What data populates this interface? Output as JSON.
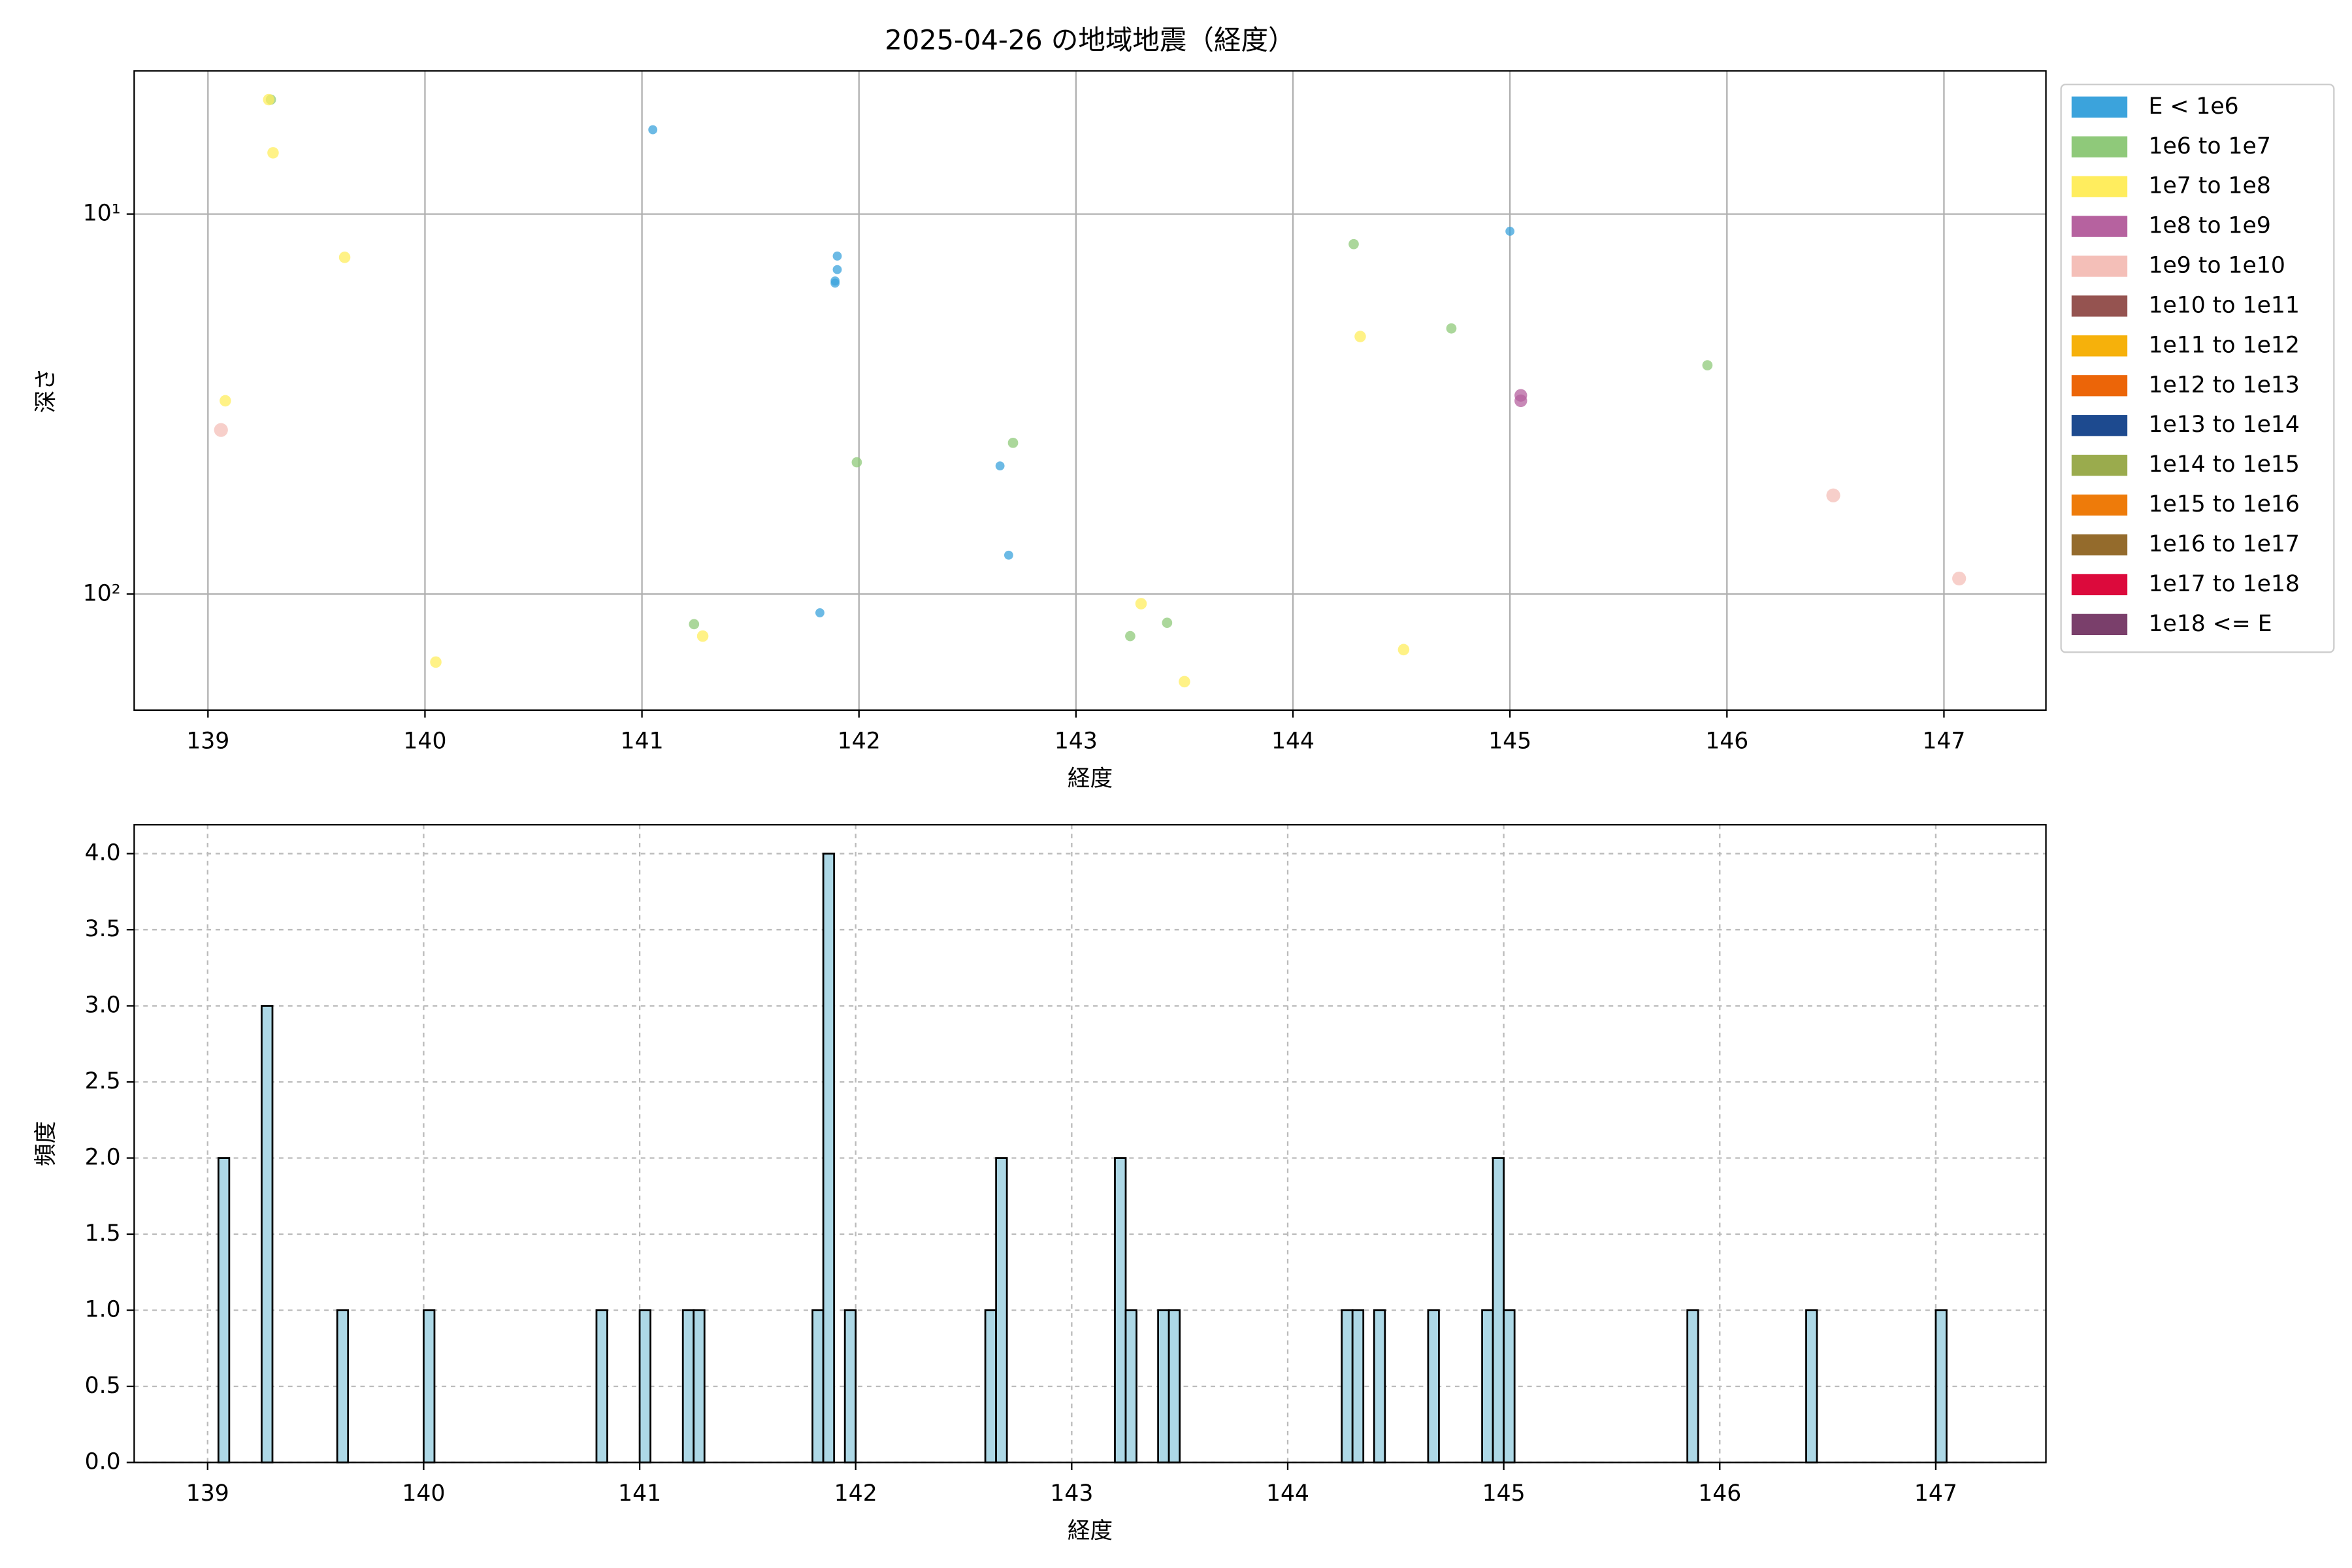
{
  "chart_data": [
    {
      "type": "scatter",
      "title": "2025-04-26 の地域地震（経度）",
      "xlabel": "経度",
      "ylabel": "深さ",
      "xlim": [
        138.66,
        147.47
      ],
      "xticks": [
        139,
        140,
        141,
        142,
        143,
        144,
        145,
        146,
        147
      ],
      "ylim": [
        202,
        4.2
      ],
      "log_y": true,
      "yticks": [
        {
          "value": 10,
          "label": "10¹"
        },
        {
          "value": 100,
          "label": "10²"
        }
      ],
      "grid": true,
      "legend": "outside right",
      "series": [
        {
          "name": "E < 1e6",
          "color": "#3ba3dc",
          "x": [
            141.05,
            141.9,
            141.9,
            141.89,
            141.89,
            142.65,
            142.69,
            141.82,
            145.0
          ],
          "values": [
            6.0,
            12.9,
            14.0,
            15.0,
            15.2,
            46,
            79,
            112,
            11.1
          ]
        },
        {
          "name": "1e6 to 1e7",
          "color": "#8fc97a",
          "x": [
            139.29,
            141.24,
            141.99,
            142.71,
            143.25,
            143.42,
            144.28,
            144.73,
            145.91
          ],
          "values": [
            5.0,
            120,
            45,
            40,
            129,
            119,
            12.0,
            20,
            25
          ]
        },
        {
          "name": "1e7 to 1e8",
          "color": "#ffed5e",
          "x": [
            139.28,
            139.08,
            139.3,
            139.63,
            140.05,
            141.28,
            143.3,
            143.5,
            144.31,
            144.51
          ],
          "values": [
            5.0,
            31,
            6.9,
            13,
            151,
            129,
            106,
            170,
            21,
            140
          ]
        },
        {
          "name": "1e8 to 1e9",
          "color": "#b6629f",
          "x": [
            145.05,
            145.05
          ],
          "values": [
            30,
            31
          ]
        },
        {
          "name": "1e9 to 1e10",
          "color": "#f4bfb8",
          "x": [
            139.06,
            146.49,
            147.07
          ],
          "values": [
            37,
            55,
            91
          ]
        },
        {
          "name": "1e10 to 1e11",
          "color": "#955350",
          "x": [],
          "values": []
        },
        {
          "name": "1e11 to 1e12",
          "color": "#f6b10b",
          "x": [],
          "values": []
        },
        {
          "name": "1e12 to 1e13",
          "color": "#ec6508",
          "x": [],
          "values": []
        },
        {
          "name": "1e13 to 1e14",
          "color": "#1d4a8f",
          "x": [],
          "values": []
        },
        {
          "name": "1e14 to 1e15",
          "color": "#9aab4d",
          "x": [],
          "values": []
        },
        {
          "name": "1e15 to 1e16",
          "color": "#ee7b0a",
          "x": [],
          "values": []
        },
        {
          "name": "1e16 to 1e17",
          "color": "#946b2c",
          "x": [],
          "values": []
        },
        {
          "name": "1e17 to 1e18",
          "color": "#dc0a3c",
          "x": [],
          "values": []
        },
        {
          "name": "1e18 <= E",
          "color": "#7a3f6b",
          "x": [],
          "values": []
        }
      ]
    },
    {
      "type": "histogram",
      "xlabel": "経度",
      "ylabel": "頻度",
      "color": "#add8e6",
      "edgecolor": "#000000",
      "xlim": [
        138.66,
        147.51
      ],
      "xticks": [
        139,
        140,
        141,
        142,
        143,
        144,
        145,
        146,
        147
      ],
      "ylim": [
        0,
        4.19
      ],
      "yticks": [
        {
          "value": 0,
          "label": "0.0"
        },
        {
          "value": 0.5,
          "label": "0.5"
        },
        {
          "value": 1,
          "label": "1.0"
        },
        {
          "value": 1.5,
          "label": "1.5"
        },
        {
          "value": 2,
          "label": "2.0"
        },
        {
          "value": 2.5,
          "label": "2.5"
        },
        {
          "value": 3,
          "label": "3.0"
        },
        {
          "value": 3.5,
          "label": "3.5"
        },
        {
          "value": 4,
          "label": "4.0"
        }
      ],
      "grid": true,
      "grid_style": "dashed",
      "bins": [
        139.05,
        139.1,
        139.15,
        139.2,
        139.25,
        139.3,
        139.35,
        139.4,
        139.45,
        139.5,
        139.55,
        139.6,
        139.65,
        139.7,
        139.75,
        139.8,
        139.85,
        139.9,
        139.95,
        140,
        140.05,
        140.1,
        140.15,
        140.2,
        140.25,
        140.3,
        140.35,
        140.4,
        140.45,
        140.5,
        140.55,
        140.6,
        140.65,
        140.7,
        140.75,
        140.8,
        140.85,
        140.9,
        140.95,
        141,
        141.05,
        141.1,
        141.15,
        141.2,
        141.25,
        141.3,
        141.35,
        141.4,
        141.45,
        141.5,
        141.55,
        141.6,
        141.65,
        141.7,
        141.75,
        141.8,
        141.85,
        141.9,
        141.95,
        142,
        142.05,
        142.1,
        142.15,
        142.2,
        142.25,
        142.3,
        142.35,
        142.4,
        142.45,
        142.5,
        142.55,
        142.6,
        142.65,
        142.7,
        142.75,
        142.8,
        142.85,
        142.9,
        142.95,
        143,
        143.05,
        143.1,
        143.15,
        143.2,
        143.25,
        143.3,
        143.35,
        143.4,
        143.45,
        143.5,
        143.55,
        143.6,
        143.65,
        143.7,
        143.75,
        143.8,
        143.85,
        143.9,
        143.95,
        144,
        144.05,
        144.1,
        144.15,
        144.2,
        144.25,
        144.3,
        144.35,
        144.4,
        144.45,
        144.5,
        144.55,
        144.6,
        144.65,
        144.7,
        144.75,
        144.8,
        144.85,
        144.9,
        144.95,
        145,
        145.05,
        145.1,
        145.15,
        145.2,
        145.25,
        145.3,
        145.35,
        145.4,
        145.45,
        145.5,
        145.55,
        145.6,
        145.65,
        145.7,
        145.75,
        145.8,
        145.85,
        145.9,
        145.95,
        146,
        146.05,
        146.1,
        146.15,
        146.2,
        146.25,
        146.3,
        146.35,
        146.4,
        146.45,
        146.5,
        146.55,
        146.6,
        146.65,
        146.7,
        146.75,
        146.8,
        146.85,
        146.9,
        146.95,
        147,
        147.05
      ],
      "counts": [
        2,
        0,
        0,
        0,
        3,
        0,
        0,
        0,
        0,
        0,
        0,
        1,
        0,
        0,
        0,
        0,
        0,
        0,
        0,
        1,
        0,
        0,
        0,
        0,
        0,
        0,
        0,
        0,
        0,
        0,
        0,
        0,
        0,
        0,
        0,
        1,
        0,
        0,
        0,
        1,
        0,
        0,
        0,
        1,
        1,
        0,
        0,
        0,
        0,
        0,
        0,
        0,
        0,
        0,
        0,
        1,
        4,
        0,
        1,
        0,
        0,
        0,
        0,
        0,
        0,
        0,
        0,
        0,
        0,
        0,
        0,
        1,
        2,
        0,
        0,
        0,
        0,
        0,
        0,
        0,
        0,
        0,
        0,
        2,
        1,
        0,
        0,
        1,
        1,
        0,
        0,
        0,
        0,
        0,
        0,
        0,
        0,
        0,
        0,
        0,
        0,
        0,
        0,
        0,
        1,
        1,
        0,
        1,
        0,
        0,
        0,
        0,
        1,
        0,
        0,
        0,
        0,
        1,
        2,
        1,
        0,
        0,
        0,
        0,
        0,
        0,
        0,
        0,
        0,
        0,
        0,
        0,
        0,
        0,
        0,
        0,
        1,
        0,
        0,
        0,
        0,
        0,
        0,
        0,
        0,
        0,
        0,
        1,
        0,
        0,
        0,
        0,
        0,
        0,
        0,
        0,
        0,
        0,
        0,
        1
      ]
    }
  ]
}
